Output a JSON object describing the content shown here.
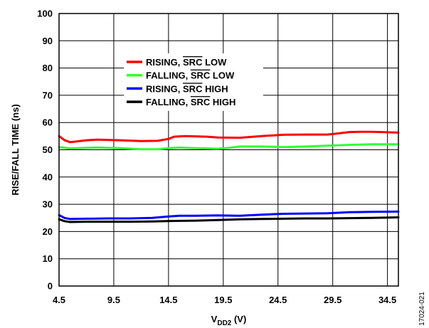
{
  "chart_data": {
    "type": "line",
    "xlabel": {
      "main": "V",
      "sub": "DD2",
      "unit": " (V)"
    },
    "ylabel": "RISE/FALL TIME (ns)",
    "xlim": [
      4.5,
      35.5
    ],
    "ylim": [
      0,
      100
    ],
    "x_ticks": [
      4.5,
      9.5,
      14.5,
      19.5,
      24.5,
      29.5,
      34.5
    ],
    "x_tick_labels": [
      "4.5",
      "9.5",
      "14.5",
      "19.5",
      "24.5",
      "29.5",
      "34.5"
    ],
    "y_ticks": [
      0,
      10,
      20,
      30,
      40,
      50,
      60,
      70,
      80,
      90,
      100
    ],
    "y_tick_labels": [
      "0",
      "10",
      "20",
      "30",
      "40",
      "50",
      "60",
      "70",
      "80",
      "90",
      "100"
    ],
    "grid": true,
    "legend_position": "upper-left",
    "series": [
      {
        "name": "RISING, SRC LOW",
        "legend": {
          "before": "RISING, ",
          "overline": "SRC",
          "after": " LOW"
        },
        "color": "#ff0000",
        "x": [
          4.5,
          5,
          5.5,
          6,
          7,
          8,
          10,
          12,
          13.5,
          14.5,
          15,
          16,
          18,
          19,
          21,
          23,
          25,
          27,
          29,
          30,
          31,
          32,
          33,
          34,
          35.5
        ],
        "y": [
          55,
          53.5,
          52.8,
          53,
          53.5,
          53.7,
          53.5,
          53.2,
          53.3,
          54,
          54.8,
          55,
          54.8,
          54.5,
          54.4,
          55,
          55.5,
          55.6,
          55.6,
          56,
          56.5,
          56.6,
          56.6,
          56.5,
          56.3
        ]
      },
      {
        "name": "FALLING, SRC LOW",
        "legend": {
          "before": "FALLING, ",
          "overline": "SRC",
          "after": " LOW"
        },
        "color": "#33ff33",
        "x": [
          4.5,
          5.5,
          7,
          8,
          10,
          12,
          13.5,
          14.5,
          15.5,
          17,
          19,
          20,
          21,
          23,
          25,
          27,
          29,
          31,
          33,
          35.5
        ],
        "y": [
          51,
          50.5,
          50.7,
          50.8,
          50.6,
          50.2,
          50.2,
          50.6,
          50.8,
          50.6,
          50.4,
          50.7,
          51.2,
          51.2,
          51,
          51.2,
          51.5,
          51.8,
          52,
          52
        ]
      },
      {
        "name": "RISING, SRC HIGH",
        "legend": {
          "before": "RISING, ",
          "overline": "SRC",
          "after": " HIGH"
        },
        "color": "#0000ff",
        "x": [
          4.5,
          5,
          5.5,
          7,
          9,
          11,
          13,
          14.5,
          15.5,
          17,
          19,
          21,
          23,
          25,
          27,
          29,
          31,
          33,
          35.5
        ],
        "y": [
          26,
          25,
          24.6,
          24.7,
          24.8,
          24.8,
          25,
          25.5,
          25.8,
          25.8,
          25.9,
          25.8,
          26.2,
          26.5,
          26.6,
          26.7,
          27.1,
          27.2,
          27.3
        ]
      },
      {
        "name": "FALLING, SRC HIGH",
        "legend": {
          "before": "FALLING, ",
          "overline": "SRC",
          "after": " HIGH"
        },
        "color": "#000000",
        "x": [
          4.5,
          5,
          5.5,
          7,
          9,
          11,
          13,
          15,
          17,
          19,
          21,
          23,
          25,
          27,
          29,
          31,
          33,
          35.5
        ],
        "y": [
          24.5,
          23.8,
          23.5,
          23.6,
          23.6,
          23.6,
          23.7,
          23.9,
          24,
          24.2,
          24.5,
          24.6,
          24.7,
          24.8,
          24.8,
          24.9,
          25,
          25.2
        ]
      }
    ]
  },
  "figure_id": "17024-021"
}
